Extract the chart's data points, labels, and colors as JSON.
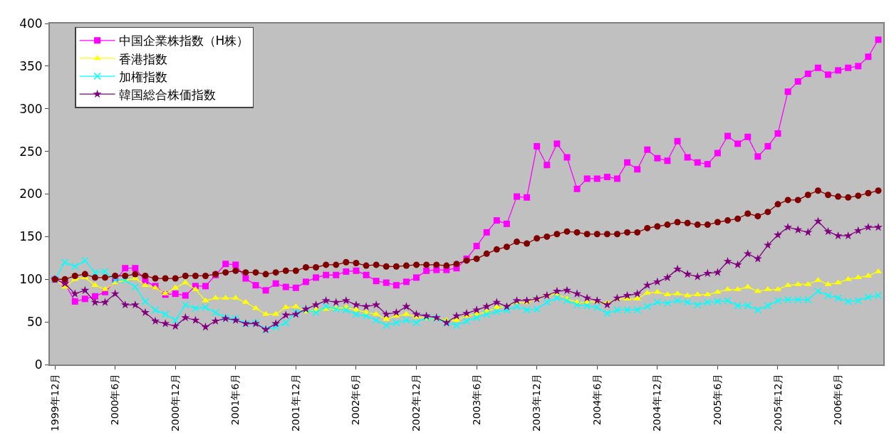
{
  "chart_data": {
    "type": "line",
    "categories": [
      "1999年12月",
      null,
      null,
      null,
      null,
      null,
      "2000年6月",
      null,
      null,
      null,
      null,
      null,
      "2000年12月",
      null,
      null,
      null,
      null,
      null,
      "2001年6月",
      null,
      null,
      null,
      null,
      null,
      "2001年12月",
      null,
      null,
      null,
      null,
      null,
      "2002年6月",
      null,
      null,
      null,
      null,
      null,
      "2002年12月",
      null,
      null,
      null,
      null,
      null,
      "2003年6月",
      null,
      null,
      null,
      null,
      null,
      "2003年12月",
      null,
      null,
      null,
      null,
      null,
      "2004年6月",
      null,
      null,
      null,
      null,
      null,
      "2004年12月",
      null,
      null,
      null,
      null,
      null,
      "2005年6月",
      null,
      null,
      null,
      null,
      null,
      "2005年12月",
      null,
      null,
      null,
      null,
      null,
      "2006年6月",
      null,
      null,
      null,
      null
    ],
    "series": [
      {
        "name": "中国企業株指数（H株）",
        "color": "#ff00ff",
        "marker": "square",
        "values": [
          100,
          95,
          74,
          77,
          80,
          85,
          98,
          113,
          113,
          98,
          92,
          82,
          83,
          81,
          92,
          92,
          105,
          118,
          117,
          101,
          93,
          87,
          95,
          91,
          90,
          97,
          102,
          105,
          105,
          109,
          110,
          105,
          98,
          96,
          93,
          97,
          102,
          110,
          111,
          111,
          113,
          124,
          139,
          155,
          169,
          165,
          197,
          196,
          256,
          234,
          259,
          243,
          206,
          218,
          218,
          220,
          218,
          237,
          229,
          252,
          242,
          239,
          262,
          243,
          237,
          235,
          248,
          268,
          259,
          267,
          244,
          256,
          271,
          320,
          332,
          341,
          348,
          340,
          345,
          348,
          350,
          361,
          381
        ]
      },
      {
        "name": "香港指数",
        "color": "#ffff00",
        "marker": "triangle",
        "values": [
          100,
          91,
          100,
          102,
          93,
          88,
          96,
          99,
          101,
          93,
          90,
          83,
          90,
          96,
          88,
          75,
          78,
          78,
          78,
          73,
          66,
          59,
          59,
          67,
          68,
          62,
          64,
          65,
          66,
          67,
          64,
          61,
          59,
          53,
          57,
          59,
          56,
          54,
          54,
          52,
          52,
          57,
          59,
          62,
          67,
          68,
          73,
          73,
          77,
          81,
          83,
          77,
          73,
          73,
          74,
          72,
          77,
          77,
          77,
          84,
          85,
          82,
          83,
          81,
          82,
          82,
          85,
          88,
          88,
          91,
          86,
          88,
          88,
          93,
          94,
          94,
          99,
          94,
          96,
          100,
          102,
          104,
          109
        ]
      },
      {
        "name": "加権指数",
        "color": "#00ffff",
        "marker": "cross",
        "values": [
          100,
          120,
          115,
          122,
          108,
          109,
          99,
          99,
          91,
          74,
          64,
          59,
          52,
          70,
          66,
          67,
          61,
          55,
          54,
          48,
          49,
          41,
          44,
          49,
          61,
          64,
          61,
          68,
          65,
          64,
          59,
          57,
          52,
          46,
          49,
          52,
          49,
          55,
          54,
          49,
          46,
          51,
          55,
          59,
          62,
          64,
          68,
          64,
          65,
          73,
          78,
          75,
          70,
          69,
          67,
          60,
          64,
          64,
          64,
          68,
          73,
          72,
          75,
          73,
          70,
          73,
          74,
          75,
          69,
          69,
          64,
          69,
          75,
          76,
          76,
          76,
          86,
          81,
          78,
          74,
          75,
          79,
          81
        ]
      },
      {
        "name": "韓国総合株価指数",
        "color": "#800080",
        "marker": "star",
        "values": [
          100,
          95,
          83,
          87,
          73,
          73,
          83,
          70,
          70,
          61,
          51,
          48,
          45,
          55,
          52,
          44,
          51,
          54,
          52,
          48,
          48,
          41,
          48,
          58,
          59,
          65,
          70,
          75,
          73,
          75,
          70,
          68,
          70,
          59,
          61,
          68,
          59,
          57,
          55,
          49,
          57,
          60,
          64,
          68,
          73,
          68,
          75,
          75,
          77,
          81,
          86,
          87,
          83,
          78,
          75,
          70,
          78,
          81,
          83,
          93,
          97,
          102,
          112,
          106,
          103,
          107,
          108,
          121,
          117,
          130,
          124,
          140,
          152,
          161,
          158,
          155,
          168,
          156,
          151,
          151,
          157,
          161,
          161
        ]
      },
      {
        "color": "#800000",
        "marker": "circle",
        "values": [
          100,
          100,
          104,
          106,
          102,
          102,
          104,
          104,
          106,
          104,
          101,
          101,
          101,
          104,
          104,
          104,
          106,
          108,
          110,
          108,
          108,
          106,
          108,
          110,
          110,
          114,
          114,
          117,
          117,
          120,
          119,
          116,
          117,
          115,
          115,
          116,
          117,
          117,
          117,
          116,
          118,
          122,
          124,
          130,
          135,
          138,
          144,
          142,
          148,
          150,
          153,
          156,
          155,
          153,
          153,
          153,
          153,
          155,
          155,
          160,
          162,
          164,
          167,
          166,
          164,
          164,
          167,
          169,
          171,
          177,
          174,
          179,
          188,
          193,
          193,
          199,
          204,
          199,
          197,
          196,
          198,
          201,
          204
        ]
      }
    ],
    "ylim": [
      0,
      400
    ],
    "yticks": [
      0,
      50,
      100,
      150,
      200,
      250,
      300,
      350,
      400
    ],
    "grid": false,
    "legend": "top left",
    "line_style": "solid"
  }
}
